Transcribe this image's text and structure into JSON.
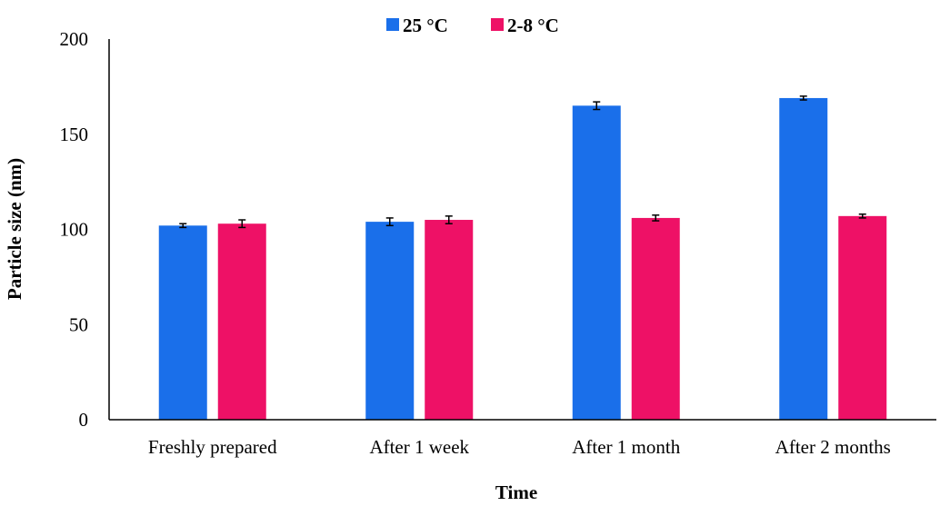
{
  "chart_data": {
    "type": "bar",
    "categories": [
      "Freshly prepared",
      "After 1 week",
      "After 1 month",
      "After 2 months"
    ],
    "series": [
      {
        "name": "25 °C",
        "color": "#1a6fea",
        "values": [
          102,
          104,
          165,
          169
        ],
        "errors": [
          1.0,
          2.0,
          2.0,
          1.0
        ]
      },
      {
        "name": "2-8 °C",
        "color": "#ee1166",
        "values": [
          103,
          105,
          106,
          107
        ],
        "errors": [
          2.0,
          2.0,
          1.5,
          1.0
        ]
      }
    ],
    "xlabel": "Time",
    "ylabel": "Particle size (nm)",
    "ylim": [
      0,
      200
    ],
    "yticks": [
      "0",
      "50",
      "100",
      "150",
      "200"
    ],
    "grid": false,
    "legend_position": "top-center"
  }
}
